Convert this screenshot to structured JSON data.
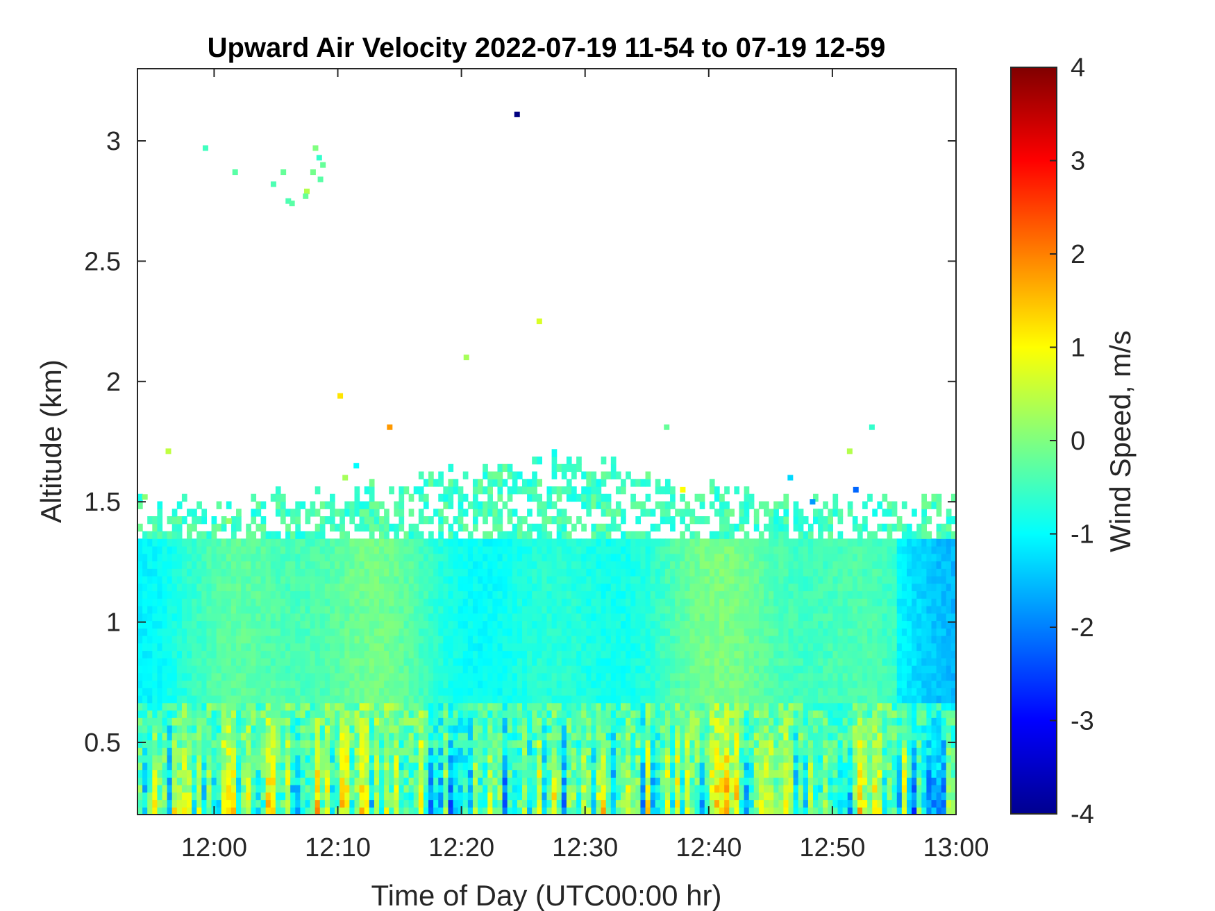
{
  "chart_data": {
    "type": "heatmap",
    "title": "Upward Air Velocity 2022-07-19 11-54 to 07-19 12-59",
    "xlabel": "Time of Day (UTC00:00 hr)",
    "ylabel": "Altitude (km)",
    "colorbar_label": "Wind Speed, m/s",
    "colormap": "jet",
    "x_tick_labels": [
      "12:00",
      "12:10",
      "12:20",
      "12:30",
      "12:40",
      "12:50",
      "13:00"
    ],
    "x_ticks_minutes": [
      0,
      10,
      20,
      30,
      40,
      50,
      60
    ],
    "xlim_minutes": [
      -6.2,
      60
    ],
    "y_ticks": [
      0.5,
      1,
      1.5,
      2,
      2.5,
      3
    ],
    "y_tick_labels": [
      "0.5",
      "1",
      "1.5",
      "2",
      "2.5",
      "3"
    ],
    "ylim": [
      0.2,
      3.3
    ],
    "colorbar_ticks": [
      -4,
      -3,
      -2,
      -1,
      0,
      1,
      2,
      3,
      4
    ],
    "colorbar_tick_labels": [
      "-4",
      "-3",
      "-2",
      "-1",
      "0",
      "1",
      "2",
      "3",
      "4"
    ],
    "clim": [
      -4,
      4
    ],
    "grid": false,
    "isolated_points": [
      {
        "x": 24.5,
        "y": 3.11,
        "v": -4
      },
      {
        "x": -0.7,
        "y": 2.97,
        "v": -0.5
      },
      {
        "x": 1.7,
        "y": 2.87,
        "v": -0.3
      },
      {
        "x": 5.6,
        "y": 2.87,
        "v": -0.2
      },
      {
        "x": 4.8,
        "y": 2.82,
        "v": -0.4
      },
      {
        "x": 7.5,
        "y": 2.79,
        "v": 0.4
      },
      {
        "x": 8.2,
        "y": 2.97,
        "v": 0.0
      },
      {
        "x": 8.5,
        "y": 2.93,
        "v": -0.6
      },
      {
        "x": 8.8,
        "y": 2.9,
        "v": -0.2
      },
      {
        "x": 8.0,
        "y": 2.87,
        "v": -0.1
      },
      {
        "x": 8.6,
        "y": 2.84,
        "v": -0.3
      },
      {
        "x": 6.0,
        "y": 2.75,
        "v": -0.4
      },
      {
        "x": 6.3,
        "y": 2.74,
        "v": -0.3
      },
      {
        "x": 7.4,
        "y": 2.77,
        "v": -0.2
      },
      {
        "x": 26.3,
        "y": 2.25,
        "v": 0.7
      },
      {
        "x": 20.4,
        "y": 2.1,
        "v": 0.3
      },
      {
        "x": 10.2,
        "y": 1.94,
        "v": 1.2
      },
      {
        "x": 14.2,
        "y": 1.81,
        "v": 1.8
      },
      {
        "x": 36.6,
        "y": 1.81,
        "v": -0.2
      },
      {
        "x": 53.2,
        "y": 1.81,
        "v": -0.6
      },
      {
        "x": -3.7,
        "y": 1.71,
        "v": 0.5
      },
      {
        "x": 51.4,
        "y": 1.71,
        "v": 0.4
      },
      {
        "x": 11.5,
        "y": 1.65,
        "v": -1.0
      },
      {
        "x": 10.6,
        "y": 1.6,
        "v": 0.3
      },
      {
        "x": 46.6,
        "y": 1.6,
        "v": -1.3
      },
      {
        "x": 51.9,
        "y": 1.55,
        "v": -2.2
      },
      {
        "x": -5.6,
        "y": 1.52,
        "v": 0.1
      },
      {
        "x": 48.4,
        "y": 1.5,
        "v": -1.8
      },
      {
        "x": 37.9,
        "y": 1.55,
        "v": 1.0
      },
      {
        "x": 1.2,
        "y": 1.42,
        "v": 0.2
      }
    ],
    "features": {
      "main_layer_top_km": 1.33,
      "ragged_top_range_km": [
        1.3,
        1.63
      ],
      "surface_layer_turbulence_km": [
        0.2,
        0.65
      ],
      "mid_layer_band_km": [
        0.65,
        1.33
      ]
    }
  }
}
